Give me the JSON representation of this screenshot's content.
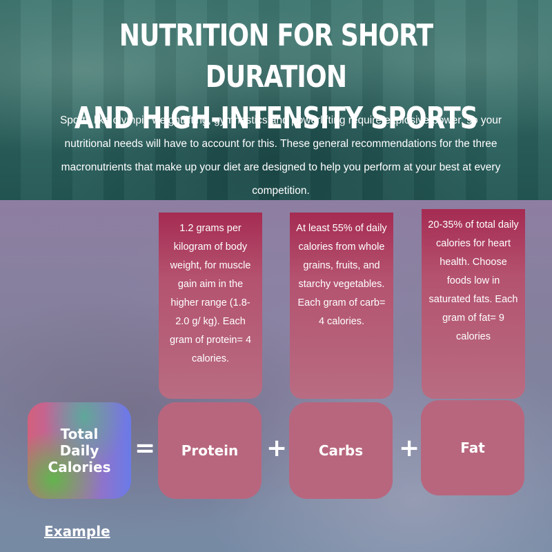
{
  "header": {
    "title_line1": "NUTRITION FOR SHORT DURATION",
    "title_line2": "AND HIGH-INTENSITY SPORTS",
    "intro": "Sports like olympic weightlifting, gymnastics and powerlifting require explosive power, so your nutritional needs will have to account for this.  These general recommendations for the three macronutrients that make up your diet are designed to help you perform at your best at every competition."
  },
  "equation": {
    "total_label": "Total Daily Calories",
    "equals": "=",
    "plus": "+",
    "macros": [
      {
        "label": "Protein",
        "info": "1.2 grams per kilogram of body weight, for muscle gain aim in the higher range (1.8-2.0 g/ kg). Each gram of protein= 4 calories."
      },
      {
        "label": "Carbs",
        "info": "At least 55% of daily calories from whole grains, fruits, and starchy vegetables. Each gram of carb= 4 calories."
      },
      {
        "label": "Fat",
        "info": "20-35% of total daily calories for heart health. Choose foods low in saturated fats. Each gram of fat= 9 calories"
      }
    ]
  },
  "example_label": "Example",
  "colors": {
    "header_teal": "#2f6763",
    "macro_box": "#b8667e",
    "info_top": "#a52b52"
  }
}
